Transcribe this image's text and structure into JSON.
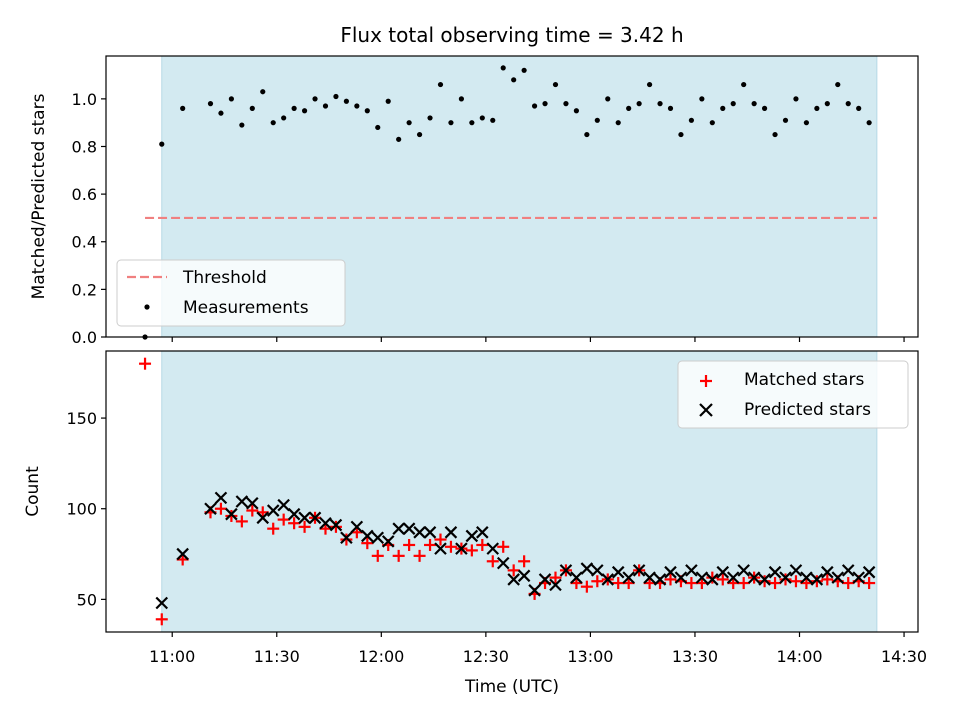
{
  "chart_data": [
    {
      "type": "scatter",
      "title": "Flux total observing time = 3.42 h",
      "xlabel": "",
      "ylabel": "Matched/Predicted stars",
      "xlim": [
        10.6833,
        14.5667
      ],
      "ylim": [
        0.0,
        1.18
      ],
      "yticks": [
        0.0,
        0.2,
        0.4,
        0.6,
        0.8,
        1.0
      ],
      "ytick_labels": [
        "0.0",
        "0.2",
        "0.4",
        "0.6",
        "0.8",
        "1.0"
      ],
      "observing_window": [
        10.95,
        14.37
      ],
      "threshold": {
        "name": "Threshold",
        "value": 0.5,
        "x_range": [
          10.87,
          14.37
        ],
        "color": "#f08080"
      },
      "legend": [
        "Threshold",
        "Measurements"
      ],
      "legend_position": "lower-left",
      "series": [
        {
          "name": "Measurements",
          "color": "#000000",
          "x": [
            10.87,
            10.95,
            11.05,
            11.183,
            11.233,
            11.283,
            11.333,
            11.383,
            11.433,
            11.483,
            11.533,
            11.583,
            11.633,
            11.683,
            11.733,
            11.783,
            11.833,
            11.883,
            11.933,
            11.983,
            12.033,
            12.083,
            12.133,
            12.183,
            12.233,
            12.283,
            12.333,
            12.383,
            12.433,
            12.483,
            12.533,
            12.583,
            12.633,
            12.683,
            12.733,
            12.783,
            12.833,
            12.883,
            12.933,
            12.983,
            13.033,
            13.083,
            13.133,
            13.183,
            13.233,
            13.283,
            13.333,
            13.383,
            13.433,
            13.483,
            13.533,
            13.583,
            13.633,
            13.683,
            13.733,
            13.783,
            13.833,
            13.883,
            13.933,
            13.983,
            14.033,
            14.083,
            14.133,
            14.183,
            14.233,
            14.283,
            14.333
          ],
          "y": [
            0.0,
            0.81,
            0.96,
            0.98,
            0.94,
            1.0,
            0.89,
            0.96,
            1.03,
            0.9,
            0.92,
            0.96,
            0.95,
            1.0,
            0.97,
            1.01,
            0.99,
            0.97,
            0.95,
            0.88,
            0.99,
            0.83,
            0.9,
            0.85,
            0.92,
            1.06,
            0.9,
            1.0,
            0.9,
            0.92,
            0.91,
            1.13,
            1.08,
            1.12,
            0.97,
            0.98,
            1.06,
            0.98,
            0.95,
            0.85,
            0.91,
            1.0,
            0.9,
            0.96,
            0.98,
            1.06,
            0.98,
            0.96,
            0.85,
            0.91,
            1.0,
            0.9,
            0.96,
            0.98,
            1.06,
            0.98,
            0.96,
            0.85,
            0.91,
            1.0,
            0.9,
            0.96,
            0.98,
            1.06,
            0.98,
            0.96,
            0.9
          ]
        }
      ]
    },
    {
      "type": "scatter",
      "title": "",
      "xlabel": "Time (UTC)",
      "ylabel": "Count",
      "xlim": [
        10.6833,
        14.5667
      ],
      "ylim": [
        32,
        187
      ],
      "yticks": [
        50,
        100,
        150
      ],
      "ytick_labels": [
        "50",
        "100",
        "150"
      ],
      "xticks": [
        11.0,
        11.5,
        12.0,
        12.5,
        13.0,
        13.5,
        14.0,
        14.5
      ],
      "xtick_labels": [
        "11:00",
        "11:30",
        "12:00",
        "12:30",
        "13:00",
        "13:30",
        "14:00",
        "14:30"
      ],
      "observing_window": [
        10.95,
        14.37
      ],
      "legend": [
        "Matched stars",
        "Predicted stars"
      ],
      "legend_position": "upper-right",
      "series": [
        {
          "name": "Matched stars",
          "marker": "plus",
          "color": "#ff0000",
          "x": [
            10.87,
            10.95,
            11.05,
            11.183,
            11.233,
            11.283,
            11.333,
            11.383,
            11.433,
            11.483,
            11.533,
            11.583,
            11.633,
            11.683,
            11.733,
            11.783,
            11.833,
            11.883,
            11.933,
            11.983,
            12.033,
            12.083,
            12.133,
            12.183,
            12.233,
            12.283,
            12.333,
            12.383,
            12.433,
            12.483,
            12.533,
            12.583,
            12.633,
            12.683,
            12.733,
            12.783,
            12.833,
            12.883,
            12.933,
            12.983,
            13.033,
            13.083,
            13.133,
            13.183,
            13.233,
            13.283,
            13.333,
            13.383,
            13.433,
            13.483,
            13.533,
            13.583,
            13.633,
            13.683,
            13.733,
            13.783,
            13.833,
            13.883,
            13.933,
            13.983,
            14.033,
            14.083,
            14.133,
            14.183,
            14.233,
            14.283,
            14.333
          ],
          "y": [
            180,
            39,
            72,
            98,
            100,
            96,
            93,
            99,
            98,
            89,
            94,
            92,
            90,
            95,
            89,
            90,
            83,
            87,
            81,
            74,
            80,
            74,
            80,
            74,
            80,
            83,
            79,
            78,
            77,
            80,
            71,
            79,
            66,
            71,
            53,
            59,
            62,
            66,
            59,
            57,
            60,
            61,
            59,
            59,
            66,
            59,
            59,
            61,
            60,
            59,
            59,
            62,
            61,
            59,
            59,
            62,
            60,
            59,
            61,
            60,
            59,
            60,
            61,
            60,
            59,
            60,
            59
          ]
        },
        {
          "name": "Predicted stars",
          "marker": "x",
          "color": "#000000",
          "x": [
            10.95,
            11.05,
            11.183,
            11.233,
            11.283,
            11.333,
            11.383,
            11.433,
            11.483,
            11.533,
            11.583,
            11.633,
            11.683,
            11.733,
            11.783,
            11.833,
            11.883,
            11.933,
            11.983,
            12.033,
            12.083,
            12.133,
            12.183,
            12.233,
            12.283,
            12.333,
            12.383,
            12.433,
            12.483,
            12.533,
            12.583,
            12.633,
            12.683,
            12.733,
            12.783,
            12.833,
            12.883,
            12.933,
            12.983,
            13.033,
            13.083,
            13.133,
            13.183,
            13.233,
            13.283,
            13.333,
            13.383,
            13.433,
            13.483,
            13.533,
            13.583,
            13.633,
            13.683,
            13.733,
            13.783,
            13.833,
            13.883,
            13.933,
            13.983,
            14.033,
            14.083,
            14.133,
            14.183,
            14.233,
            14.283,
            14.333
          ],
          "y": [
            48,
            75,
            100,
            106,
            97,
            104,
            103,
            95,
            99,
            102,
            97,
            95,
            95,
            92,
            91,
            84,
            90,
            85,
            84,
            82,
            89,
            89,
            87,
            87,
            78,
            87,
            78,
            85,
            87,
            78,
            70,
            61,
            63,
            55,
            61,
            58,
            66,
            62,
            67,
            66,
            61,
            65,
            62,
            66,
            62,
            61,
            65,
            62,
            66,
            62,
            61,
            65,
            62,
            66,
            62,
            61,
            65,
            62,
            66,
            62,
            61,
            65,
            62,
            66,
            62,
            65
          ]
        }
      ]
    }
  ]
}
